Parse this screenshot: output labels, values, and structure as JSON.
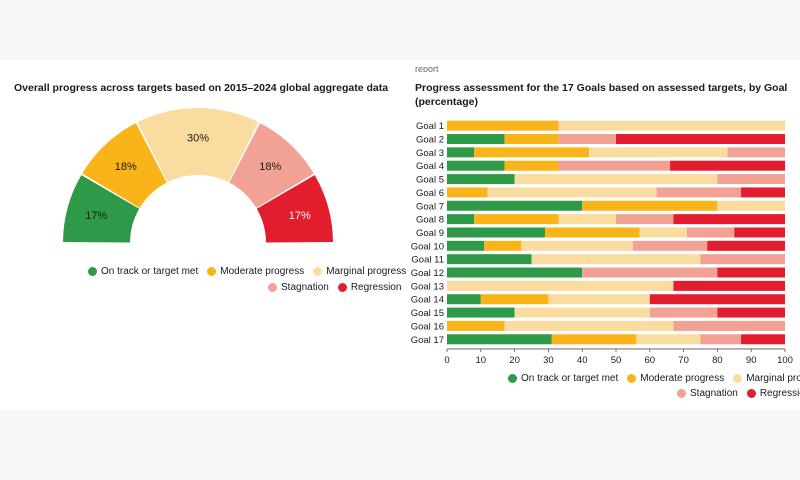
{
  "colors": {
    "on_track": "#2e9a48",
    "moderate": "#f8b418",
    "marginal": "#fbdca0",
    "stagnation": "#f1a294",
    "regression": "#e21d2e"
  },
  "top_cut_text": "report",
  "chart_data": [
    {
      "type": "pie",
      "title": "Overall progress across targets based on 2015–2024 global aggregate data",
      "categories": [
        "On track or target met",
        "Moderate progress",
        "Marginal progress",
        "Stagnation",
        "Regression"
      ],
      "values": [
        17,
        18,
        30,
        18,
        17
      ],
      "value_labels": [
        "17%",
        "18%",
        "30%",
        "18%",
        "17%"
      ],
      "legend": "bottom"
    },
    {
      "type": "bar",
      "orientation": "horizontal",
      "stacked": true,
      "title": "Progress assessment for the 17 Goals based on assessed targets, by Goal (percentage)",
      "categories": [
        "Goal 1",
        "Goal 2",
        "Goal 3",
        "Goal 4",
        "Goal 5",
        "Goal 6",
        "Goal 7",
        "Goal 8",
        "Goal 9",
        "Goal 10",
        "Goal 11",
        "Goal 12",
        "Goal 13",
        "Goal 14",
        "Goal 15",
        "Goal 16",
        "Goal 17"
      ],
      "series": [
        {
          "name": "On track or target met",
          "values": [
            0,
            17,
            8,
            17,
            20,
            0,
            40,
            8,
            29,
            11,
            25,
            40,
            0,
            10,
            20,
            0,
            31
          ]
        },
        {
          "name": "Moderate progress",
          "values": [
            33,
            16,
            34,
            16,
            0,
            12,
            40,
            25,
            28,
            11,
            0,
            0,
            0,
            20,
            0,
            17,
            25
          ]
        },
        {
          "name": "Marginal progress",
          "values": [
            67,
            0,
            41,
            0,
            60,
            50,
            20,
            17,
            14,
            33,
            50,
            0,
            67,
            30,
            40,
            50,
            19
          ]
        },
        {
          "name": "Stagnation",
          "values": [
            0,
            17,
            17,
            33,
            20,
            25,
            0,
            17,
            14,
            22,
            25,
            40,
            0,
            0,
            20,
            33,
            12
          ]
        },
        {
          "name": "Regression",
          "values": [
            0,
            50,
            0,
            34,
            0,
            13,
            0,
            33,
            15,
            23,
            0,
            20,
            33,
            40,
            20,
            0,
            13
          ]
        }
      ],
      "xlim": [
        0,
        100
      ],
      "xticks": [
        "0",
        "10",
        "20",
        "30",
        "40",
        "50",
        "60",
        "70",
        "80",
        "90",
        "100"
      ],
      "legend": "bottom-right"
    }
  ]
}
